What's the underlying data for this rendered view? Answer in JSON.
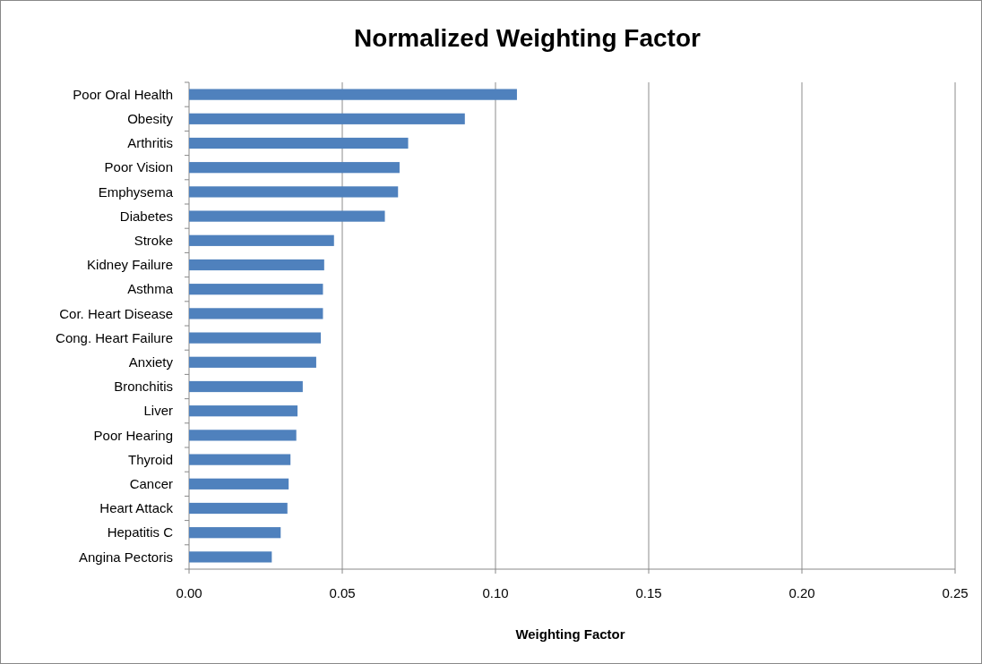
{
  "chart_data": {
    "type": "bar",
    "orientation": "horizontal",
    "title": "Normalized Weighting Factor",
    "xlabel": "Weighting Factor",
    "categories": [
      "Poor Oral Health",
      "Obesity",
      "Arthritis",
      "Poor Vision",
      "Emphysema",
      "Diabetes",
      "Stroke",
      "Kidney Failure",
      "Asthma",
      "Cor. Heart Disease",
      "Cong. Heart Failure",
      "Anxiety",
      "Bronchitis",
      "Liver",
      "Poor Hearing",
      "Thyroid",
      "Cancer",
      "Heart Attack",
      "Hepatitis C",
      "Angina Pectoris"
    ],
    "values": [
      0.107,
      0.09,
      0.0715,
      0.0687,
      0.0682,
      0.0639,
      0.0473,
      0.0441,
      0.0437,
      0.0437,
      0.043,
      0.0415,
      0.0371,
      0.0354,
      0.035,
      0.0331,
      0.0325,
      0.0321,
      0.0299,
      0.027
    ],
    "color": "#4f81bd",
    "xlim": [
      0,
      0.25
    ],
    "xticks": [
      {
        "value": 0,
        "label": "0.00"
      },
      {
        "value": 0.05,
        "label": "0.05"
      },
      {
        "value": 0.1,
        "label": "0.10"
      },
      {
        "value": 0.15,
        "label": "0.15"
      },
      {
        "value": 0.2,
        "label": "0.20"
      },
      {
        "value": 0.25,
        "label": "0.25"
      }
    ],
    "grid": "x"
  }
}
